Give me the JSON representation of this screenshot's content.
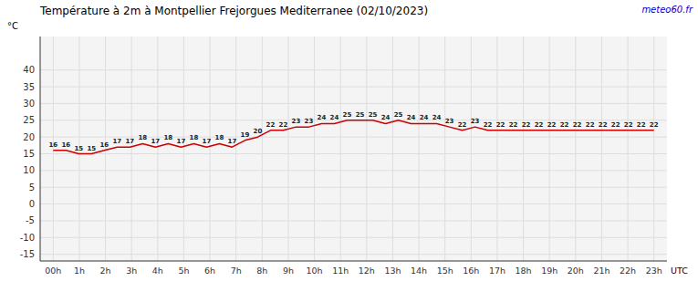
{
  "chart_data": {
    "type": "line",
    "title": "Température à 2m à Montpellier Frejorgues Mediterranee (02/10/2023)",
    "y_label": "°C",
    "x_label": "UTC",
    "annotations": [
      "meteo60.fr"
    ],
    "x": [
      0,
      0.4894,
      0.9787,
      1.4681,
      1.9574,
      2.4468,
      2.9362,
      3.4255,
      3.9149,
      4.4043,
      4.8936,
      5.383,
      5.8723,
      6.3617,
      6.8511,
      7.3404,
      7.8298,
      8.3191,
      8.8085,
      9.2979,
      9.7872,
      10.2766,
      10.766,
      11.2553,
      11.7447,
      12.234,
      12.7234,
      13.2128,
      13.7021,
      14.1915,
      14.6809,
      15.1702,
      15.6596,
      16.1489,
      16.6383,
      17.1277,
      17.617,
      18.1064,
      18.5957,
      19.0851,
      19.5745,
      20.0638,
      20.5532,
      21.0426,
      21.5319,
      22.0213,
      22.5106,
      23
    ],
    "values": [
      16,
      16,
      15,
      15,
      16,
      17,
      17,
      18,
      17,
      18,
      17,
      18,
      17,
      18,
      17,
      19,
      20,
      22,
      22,
      23,
      23,
      24,
      24,
      25,
      25,
      25,
      24,
      25,
      24,
      24,
      24,
      23,
      22,
      23,
      22,
      22,
      22,
      22,
      22,
      22,
      22,
      22,
      22,
      22,
      22,
      22,
      22,
      22
    ],
    "color": "#cc0000",
    "data_labels": true,
    "grid": true,
    "xlim": [
      -0.5,
      23.5
    ],
    "xticks": [
      {
        "value": 0,
        "label": "00h"
      },
      {
        "value": 1,
        "label": "1h"
      },
      {
        "value": 2,
        "label": "2h"
      },
      {
        "value": 3,
        "label": "3h"
      },
      {
        "value": 4,
        "label": "4h"
      },
      {
        "value": 5,
        "label": "5h"
      },
      {
        "value": 6,
        "label": "6h"
      },
      {
        "value": 7,
        "label": "7h"
      },
      {
        "value": 8,
        "label": "8h"
      },
      {
        "value": 9,
        "label": "9h"
      },
      {
        "value": 10,
        "label": "10h"
      },
      {
        "value": 11,
        "label": "11h"
      },
      {
        "value": 12,
        "label": "12h"
      },
      {
        "value": 13,
        "label": "13h"
      },
      {
        "value": 14,
        "label": "14h"
      },
      {
        "value": 15,
        "label": "15h"
      },
      {
        "value": 16,
        "label": "16h"
      },
      {
        "value": 17,
        "label": "17h"
      },
      {
        "value": 18,
        "label": "18h"
      },
      {
        "value": 19,
        "label": "19h"
      },
      {
        "value": 20,
        "label": "20h"
      },
      {
        "value": 21,
        "label": "21h"
      },
      {
        "value": 22,
        "label": "22h"
      },
      {
        "value": 23,
        "label": "23h"
      }
    ],
    "ylim": [
      -17,
      50
    ],
    "yticks": [
      -15,
      -10,
      -5,
      0,
      5,
      10,
      15,
      20,
      25,
      30,
      35,
      40
    ]
  }
}
